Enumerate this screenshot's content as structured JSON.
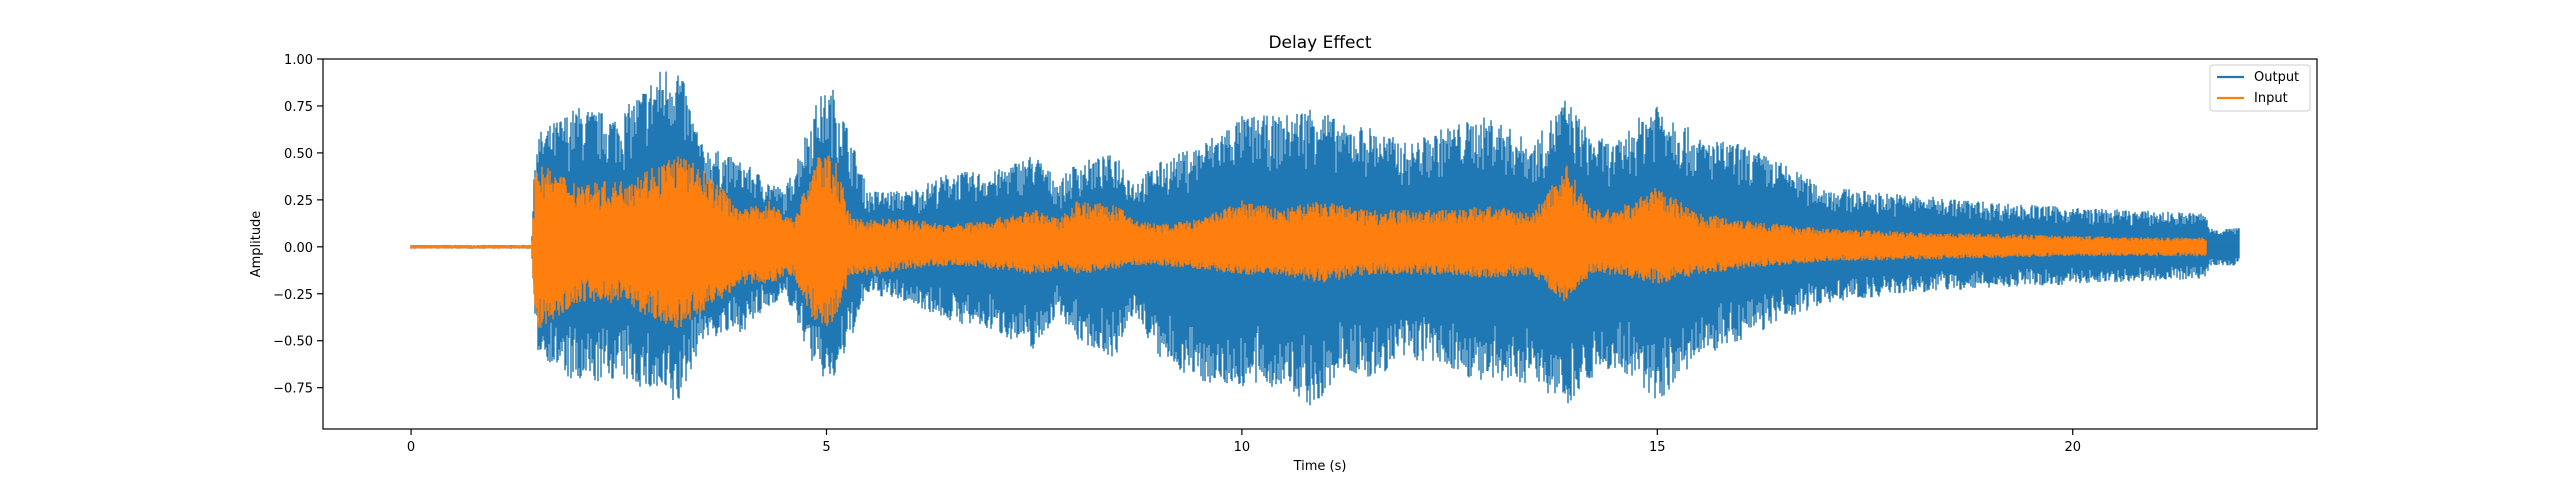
{
  "chart_data": {
    "type": "line",
    "title": "Delay Effect",
    "xlabel": "Time (s)",
    "ylabel": "Amplitude",
    "xlim": [
      -1.06,
      22.94
    ],
    "ylim": [
      -0.97,
      1.0
    ],
    "xticks": [
      0,
      5,
      10,
      15,
      20
    ],
    "xtick_labels": [
      "0",
      "5",
      "10",
      "15",
      "20"
    ],
    "yticks": [
      -0.75,
      -0.5,
      -0.25,
      0.0,
      0.25,
      0.5,
      0.75,
      1.0
    ],
    "ytick_labels": [
      "−0.75",
      "−0.50",
      "−0.25",
      "0.00",
      "0.25",
      "0.50",
      "0.75",
      "1.00"
    ],
    "grid": false,
    "legend": {
      "position": "top-right",
      "entries": [
        "Output",
        "Input"
      ]
    },
    "series": [
      {
        "name": "Output",
        "color": "#1f77b4",
        "envelope_time": [
          0,
          1.45,
          1.5,
          2,
          2.5,
          3,
          3.2,
          3.5,
          4,
          4.5,
          4.9,
          5.1,
          5.5,
          6,
          6.5,
          7,
          7.5,
          7.8,
          8,
          8.5,
          8.7,
          9,
          9.5,
          10,
          10.5,
          10.9,
          11.2,
          11.5,
          12,
          12.5,
          13,
          13.5,
          13.9,
          14.2,
          14.5,
          15,
          15.5,
          16,
          16.5,
          17,
          18,
          19,
          20,
          21,
          21.6,
          21.65,
          22.0
        ],
        "envelope_max": [
          0.01,
          0.01,
          0.6,
          0.75,
          0.7,
          0.95,
          1.0,
          0.55,
          0.45,
          0.3,
          0.8,
          0.85,
          0.3,
          0.3,
          0.4,
          0.4,
          0.5,
          0.35,
          0.45,
          0.5,
          0.35,
          0.45,
          0.55,
          0.7,
          0.7,
          0.77,
          0.65,
          0.65,
          0.55,
          0.65,
          0.7,
          0.55,
          0.8,
          0.6,
          0.55,
          0.8,
          0.58,
          0.55,
          0.45,
          0.32,
          0.28,
          0.24,
          0.21,
          0.19,
          0.18,
          0.1,
          0.1
        ],
        "envelope_min": [
          -0.01,
          -0.01,
          -0.55,
          -0.75,
          -0.7,
          -0.8,
          -0.87,
          -0.5,
          -0.45,
          -0.25,
          -0.7,
          -0.72,
          -0.25,
          -0.3,
          -0.4,
          -0.45,
          -0.55,
          -0.35,
          -0.5,
          -0.6,
          -0.35,
          -0.6,
          -0.72,
          -0.75,
          -0.75,
          -0.88,
          -0.65,
          -0.72,
          -0.6,
          -0.65,
          -0.75,
          -0.72,
          -0.85,
          -0.7,
          -0.65,
          -0.83,
          -0.6,
          -0.5,
          -0.4,
          -0.3,
          -0.25,
          -0.22,
          -0.2,
          -0.18,
          -0.17,
          -0.1,
          -0.1
        ]
      },
      {
        "name": "Input",
        "color": "#ff7f0e",
        "envelope_time": [
          0,
          1.45,
          1.5,
          2,
          2.5,
          3,
          3.2,
          3.5,
          4,
          4.3,
          4.6,
          4.9,
          5.1,
          5.3,
          5.6,
          6,
          6.5,
          7,
          7.5,
          7.8,
          8,
          8.5,
          8.7,
          9,
          9.5,
          10,
          10.5,
          10.9,
          11.5,
          12,
          12.5,
          13,
          13.5,
          13.9,
          14.2,
          14.5,
          15,
          15.5,
          16,
          16.5,
          17,
          18,
          19,
          20,
          21,
          21.6
        ],
        "envelope_max": [
          0.01,
          0.01,
          0.45,
          0.35,
          0.35,
          0.45,
          0.5,
          0.42,
          0.2,
          0.25,
          0.15,
          0.5,
          0.48,
          0.15,
          0.15,
          0.15,
          0.12,
          0.15,
          0.2,
          0.15,
          0.25,
          0.22,
          0.15,
          0.12,
          0.15,
          0.25,
          0.2,
          0.25,
          0.2,
          0.2,
          0.2,
          0.22,
          0.18,
          0.45,
          0.2,
          0.2,
          0.32,
          0.18,
          0.15,
          0.12,
          0.1,
          0.08,
          0.07,
          0.06,
          0.05,
          0.05
        ],
        "envelope_min": [
          -0.01,
          -0.01,
          -0.45,
          -0.3,
          -0.3,
          -0.4,
          -0.45,
          -0.35,
          -0.2,
          -0.2,
          -0.15,
          -0.45,
          -0.4,
          -0.15,
          -0.15,
          -0.12,
          -0.1,
          -0.12,
          -0.15,
          -0.12,
          -0.15,
          -0.12,
          -0.1,
          -0.1,
          -0.12,
          -0.15,
          -0.15,
          -0.2,
          -0.15,
          -0.15,
          -0.15,
          -0.18,
          -0.15,
          -0.3,
          -0.15,
          -0.15,
          -0.2,
          -0.15,
          -0.12,
          -0.1,
          -0.08,
          -0.07,
          -0.06,
          -0.05,
          -0.05,
          -0.05
        ]
      }
    ]
  }
}
